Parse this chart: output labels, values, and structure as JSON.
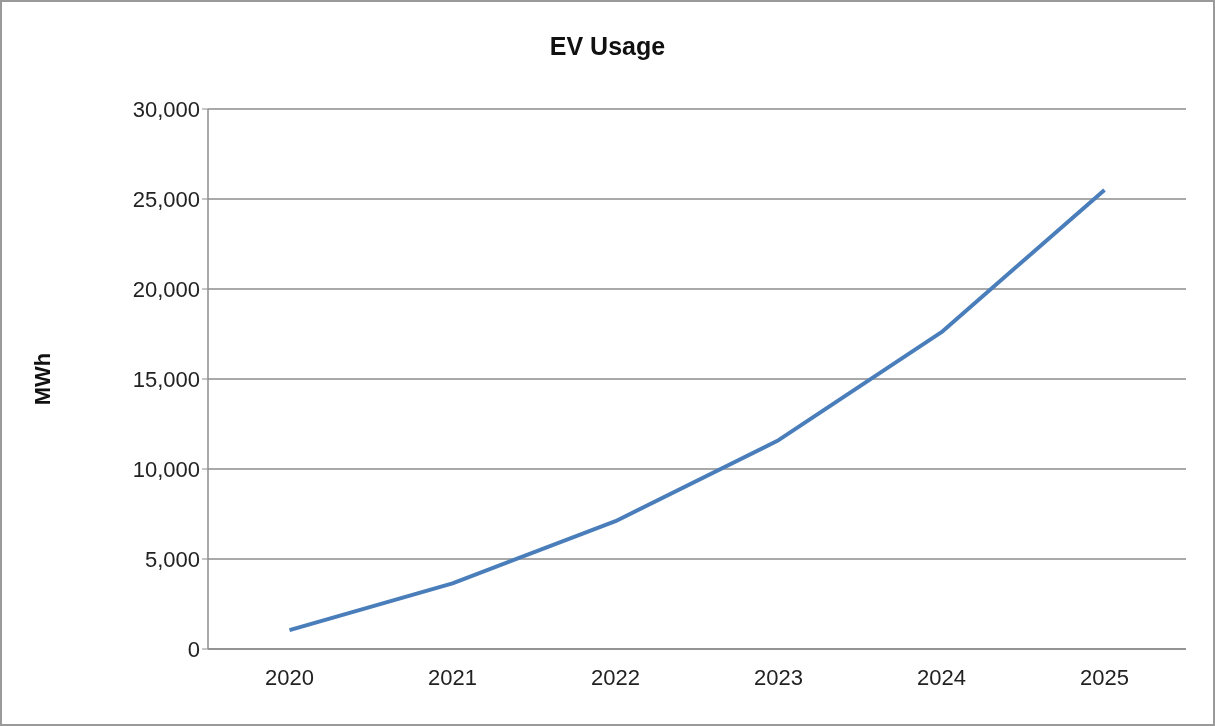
{
  "chart_data": {
    "type": "line",
    "title": "EV Usage",
    "ylabel": "MWh",
    "categories": [
      "2020",
      "2021",
      "2022",
      "2023",
      "2024",
      "2025"
    ],
    "series": [
      {
        "color": "#4a7ebb",
        "values": [
          1050,
          3650,
          7100,
          11600,
          17600,
          25500
        ]
      }
    ],
    "ylim": [
      0,
      30000
    ],
    "yticks": [
      0,
      {
        "value": 5000,
        "label": "5,000"
      },
      {
        "value": 10000,
        "label": "10,000"
      },
      {
        "value": 15000,
        "label": "15,000"
      },
      {
        "value": 20000,
        "label": "20,000"
      },
      {
        "value": 25000,
        "label": "25,000"
      },
      {
        "value": 30000,
        "label": "30,000"
      }
    ],
    "grid": "y",
    "marker": "none"
  }
}
